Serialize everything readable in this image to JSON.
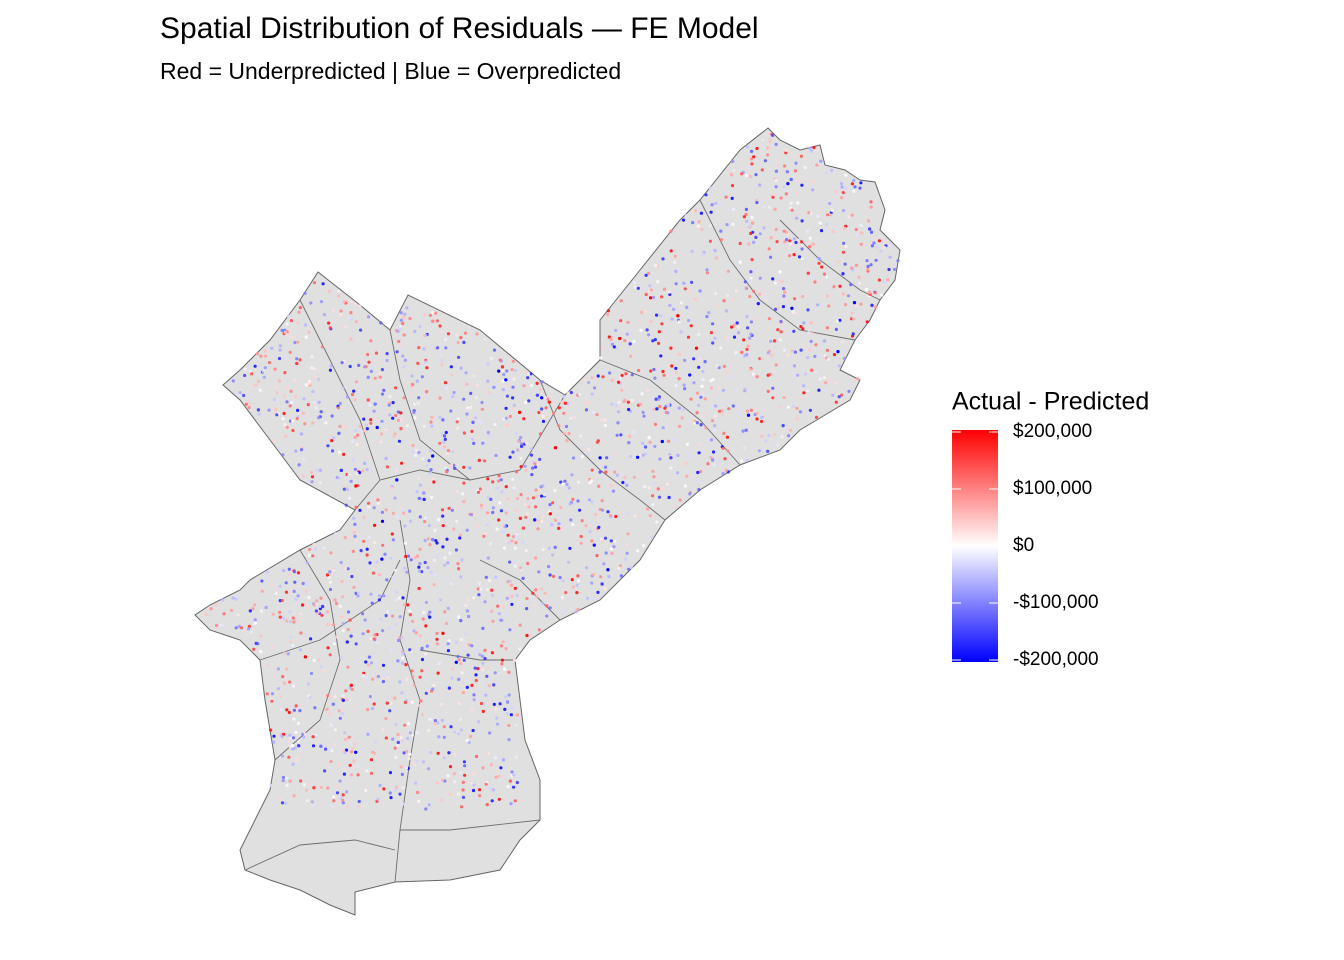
{
  "chart_data": {
    "type": "map",
    "title": "Spatial Distribution of Residuals — FE Model",
    "subtitle": "Red = Underpredicted | Blue = Overpredicted",
    "legend": {
      "title": "Actual - Predicted",
      "lim": [
        -200000,
        200000
      ],
      "colors": [
        "#0000ff",
        "#ffffff",
        "#ff0000"
      ],
      "ticks": [
        {
          "value": 200000,
          "label": "$200,000"
        },
        {
          "value": 100000,
          "label": "$100,000"
        },
        {
          "value": 0,
          "label": "$0"
        },
        {
          "value": -100000,
          "label": "-$100,000"
        },
        {
          "value": -200000,
          "label": "-$200,000"
        }
      ]
    }
  }
}
